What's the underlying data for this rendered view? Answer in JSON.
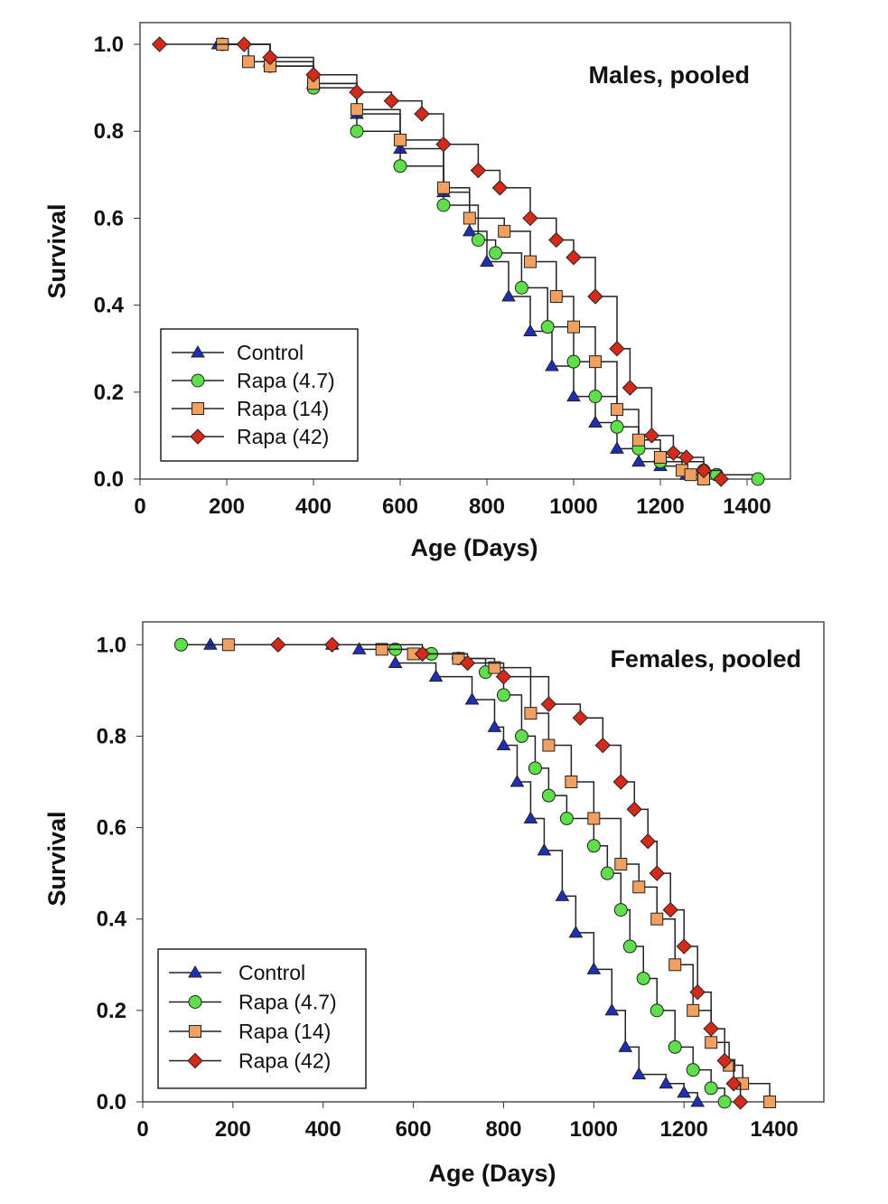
{
  "chart_data": [
    {
      "type": "line",
      "title": "Males, pooled",
      "xlabel": "Age (Days)",
      "ylabel": "Survival",
      "xlim": [
        0,
        1500
      ],
      "ylim": [
        0,
        1.05
      ],
      "xticks": [
        "0",
        "200",
        "400",
        "600",
        "800",
        "1000",
        "1200",
        "1400"
      ],
      "yticks": [
        "0.0",
        "0.2",
        "0.4",
        "0.6",
        "0.8",
        "1.0"
      ],
      "grid": false,
      "legend_position": "bottom-left",
      "series": [
        {
          "name": "Control",
          "marker": "triangle",
          "color": "#1f2fb5",
          "points": [
            [
              180,
              1
            ],
            [
              300,
              0.96
            ],
            [
              400,
              0.91
            ],
            [
              500,
              0.84
            ],
            [
              600,
              0.76
            ],
            [
              700,
              0.66
            ],
            [
              760,
              0.57
            ],
            [
              800,
              0.5
            ],
            [
              850,
              0.42
            ],
            [
              900,
              0.34
            ],
            [
              950,
              0.26
            ],
            [
              1000,
              0.19
            ],
            [
              1050,
              0.13
            ],
            [
              1100,
              0.07
            ],
            [
              1150,
              0.04
            ],
            [
              1200,
              0.03
            ],
            [
              1260,
              0.01
            ],
            [
              1300,
              0
            ]
          ]
        },
        {
          "name": "Rapa (4.7)",
          "marker": "circle",
          "color": "#5ee04a",
          "points": [
            [
              190,
              1
            ],
            [
              300,
              0.95
            ],
            [
              400,
              0.9
            ],
            [
              500,
              0.8
            ],
            [
              600,
              0.72
            ],
            [
              700,
              0.63
            ],
            [
              780,
              0.55
            ],
            [
              820,
              0.52
            ],
            [
              880,
              0.44
            ],
            [
              940,
              0.35
            ],
            [
              1000,
              0.27
            ],
            [
              1050,
              0.19
            ],
            [
              1100,
              0.12
            ],
            [
              1150,
              0.07
            ],
            [
              1200,
              0.04
            ],
            [
              1300,
              0.02
            ],
            [
              1330,
              0.01
            ],
            [
              1425,
              0
            ]
          ]
        },
        {
          "name": "Rapa (14)",
          "marker": "square",
          "color": "#f0a060",
          "points": [
            [
              190,
              1
            ],
            [
              250,
              0.96
            ],
            [
              300,
              0.95
            ],
            [
              400,
              0.91
            ],
            [
              500,
              0.85
            ],
            [
              600,
              0.78
            ],
            [
              700,
              0.67
            ],
            [
              760,
              0.6
            ],
            [
              840,
              0.57
            ],
            [
              900,
              0.5
            ],
            [
              960,
              0.42
            ],
            [
              1000,
              0.35
            ],
            [
              1050,
              0.27
            ],
            [
              1100,
              0.16
            ],
            [
              1150,
              0.09
            ],
            [
              1200,
              0.05
            ],
            [
              1250,
              0.02
            ],
            [
              1270,
              0.01
            ],
            [
              1300,
              0
            ]
          ]
        },
        {
          "name": "Rapa (42)",
          "marker": "diamond",
          "color": "#d42a1a",
          "points": [
            [
              45,
              1
            ],
            [
              240,
              1
            ],
            [
              300,
              0.97
            ],
            [
              400,
              0.93
            ],
            [
              500,
              0.89
            ],
            [
              580,
              0.87
            ],
            [
              650,
              0.84
            ],
            [
              700,
              0.77
            ],
            [
              780,
              0.71
            ],
            [
              830,
              0.67
            ],
            [
              900,
              0.6
            ],
            [
              960,
              0.55
            ],
            [
              1000,
              0.51
            ],
            [
              1050,
              0.42
            ],
            [
              1100,
              0.3
            ],
            [
              1130,
              0.21
            ],
            [
              1180,
              0.1
            ],
            [
              1230,
              0.06
            ],
            [
              1260,
              0.05
            ],
            [
              1300,
              0.02
            ],
            [
              1340,
              0
            ]
          ]
        }
      ]
    },
    {
      "type": "line",
      "title": "Females, pooled",
      "xlabel": "Age (Days)",
      "ylabel": "Survival",
      "xlim": [
        0,
        1510
      ],
      "ylim": [
        0,
        1.05
      ],
      "xticks": [
        "0",
        "200",
        "400",
        "600",
        "800",
        "1000",
        "1200",
        "1400"
      ],
      "yticks": [
        "0.0",
        "0.2",
        "0.4",
        "0.6",
        "0.8",
        "1.0"
      ],
      "grid": false,
      "legend_position": "bottom-left",
      "series": [
        {
          "name": "Control",
          "marker": "triangle",
          "color": "#1f2fb5",
          "points": [
            [
              150,
              1
            ],
            [
              420,
              1
            ],
            [
              480,
              0.99
            ],
            [
              560,
              0.96
            ],
            [
              650,
              0.93
            ],
            [
              730,
              0.88
            ],
            [
              780,
              0.82
            ],
            [
              800,
              0.78
            ],
            [
              830,
              0.7
            ],
            [
              860,
              0.62
            ],
            [
              890,
              0.55
            ],
            [
              930,
              0.45
            ],
            [
              960,
              0.37
            ],
            [
              1000,
              0.29
            ],
            [
              1040,
              0.2
            ],
            [
              1070,
              0.12
            ],
            [
              1100,
              0.06
            ],
            [
              1160,
              0.04
            ],
            [
              1200,
              0.02
            ],
            [
              1230,
              0
            ]
          ]
        },
        {
          "name": "Rapa (4.7)",
          "marker": "circle",
          "color": "#5ee04a",
          "points": [
            [
              85,
              1
            ],
            [
              560,
              0.99
            ],
            [
              640,
              0.98
            ],
            [
              700,
              0.97
            ],
            [
              760,
              0.94
            ],
            [
              800,
              0.89
            ],
            [
              840,
              0.8
            ],
            [
              870,
              0.73
            ],
            [
              900,
              0.67
            ],
            [
              940,
              0.62
            ],
            [
              1000,
              0.56
            ],
            [
              1030,
              0.5
            ],
            [
              1060,
              0.42
            ],
            [
              1080,
              0.34
            ],
            [
              1110,
              0.27
            ],
            [
              1140,
              0.2
            ],
            [
              1180,
              0.12
            ],
            [
              1220,
              0.07
            ],
            [
              1260,
              0.03
            ],
            [
              1290,
              0
            ]
          ]
        },
        {
          "name": "Rapa (14)",
          "marker": "square",
          "color": "#f0a060",
          "points": [
            [
              190,
              1
            ],
            [
              530,
              0.99
            ],
            [
              600,
              0.98
            ],
            [
              700,
              0.97
            ],
            [
              780,
              0.95
            ],
            [
              860,
              0.85
            ],
            [
              900,
              0.78
            ],
            [
              950,
              0.7
            ],
            [
              1000,
              0.62
            ],
            [
              1060,
              0.52
            ],
            [
              1100,
              0.47
            ],
            [
              1140,
              0.4
            ],
            [
              1180,
              0.3
            ],
            [
              1220,
              0.2
            ],
            [
              1260,
              0.13
            ],
            [
              1300,
              0.08
            ],
            [
              1330,
              0.04
            ],
            [
              1390,
              0
            ]
          ]
        },
        {
          "name": "Rapa (42)",
          "marker": "diamond",
          "color": "#d42a1a",
          "points": [
            [
              300,
              1
            ],
            [
              420,
              1
            ],
            [
              620,
              0.98
            ],
            [
              720,
              0.96
            ],
            [
              800,
              0.93
            ],
            [
              900,
              0.87
            ],
            [
              970,
              0.84
            ],
            [
              1020,
              0.78
            ],
            [
              1060,
              0.7
            ],
            [
              1090,
              0.64
            ],
            [
              1120,
              0.57
            ],
            [
              1140,
              0.5
            ],
            [
              1170,
              0.42
            ],
            [
              1200,
              0.34
            ],
            [
              1230,
              0.24
            ],
            [
              1260,
              0.16
            ],
            [
              1290,
              0.09
            ],
            [
              1310,
              0.04
            ],
            [
              1325,
              0
            ]
          ]
        }
      ]
    }
  ]
}
